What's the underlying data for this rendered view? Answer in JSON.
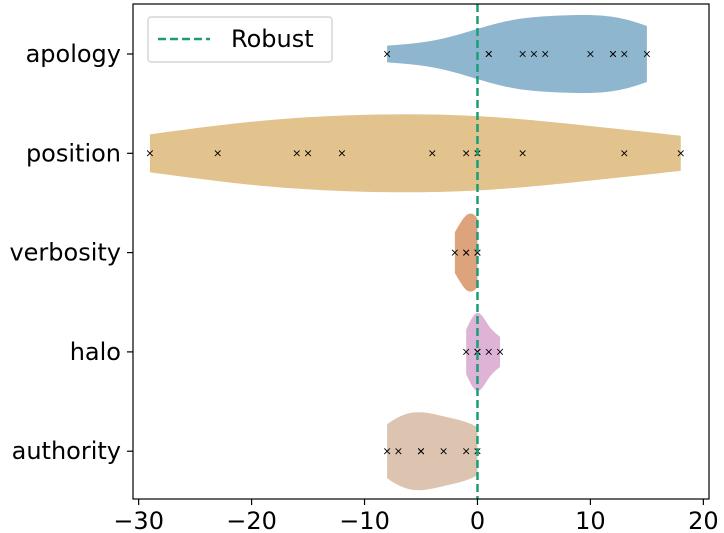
{
  "chart_data": {
    "type": "violin",
    "orientation": "horizontal",
    "title": "",
    "xlabel": "",
    "ylabel": "",
    "xlim": [
      -30.5,
      20.5
    ],
    "x_ticks": [
      -30,
      -20,
      -10,
      0,
      10,
      20
    ],
    "x_tick_labels": [
      "−30",
      "−20",
      "−10",
      "0",
      "10",
      "20"
    ],
    "grid": false,
    "legend": {
      "position": "top-left",
      "entries": [
        {
          "label": "Robust",
          "style": "dashed-line",
          "color": "#1a9e77"
        }
      ]
    },
    "reference_line": {
      "x": 0,
      "label": "Robust",
      "color": "#1a9e77",
      "style": "dashed"
    },
    "categories": [
      "apology",
      "position",
      "verbosity",
      "halo",
      "authority"
    ],
    "series": [
      {
        "name": "apology",
        "color": "#8fb6cf",
        "points": [
          -8,
          1,
          1,
          4,
          5,
          6,
          10,
          12,
          12,
          13,
          15
        ]
      },
      {
        "name": "position",
        "color": "#e2c38e",
        "points": [
          -29,
          -23,
          -16,
          -15,
          -12,
          -4,
          -1,
          0,
          4,
          13,
          18
        ]
      },
      {
        "name": "verbosity",
        "color": "#dda37c",
        "points": [
          -2,
          -1,
          -1,
          0,
          0
        ]
      },
      {
        "name": "halo",
        "color": "#ddb4d6",
        "points": [
          -1,
          0,
          0,
          0,
          1,
          2
        ]
      },
      {
        "name": "authority",
        "color": "#dcc4b1",
        "points": [
          -8,
          -7,
          -5,
          -5,
          -3,
          -1,
          0
        ]
      }
    ],
    "marker": "x"
  }
}
